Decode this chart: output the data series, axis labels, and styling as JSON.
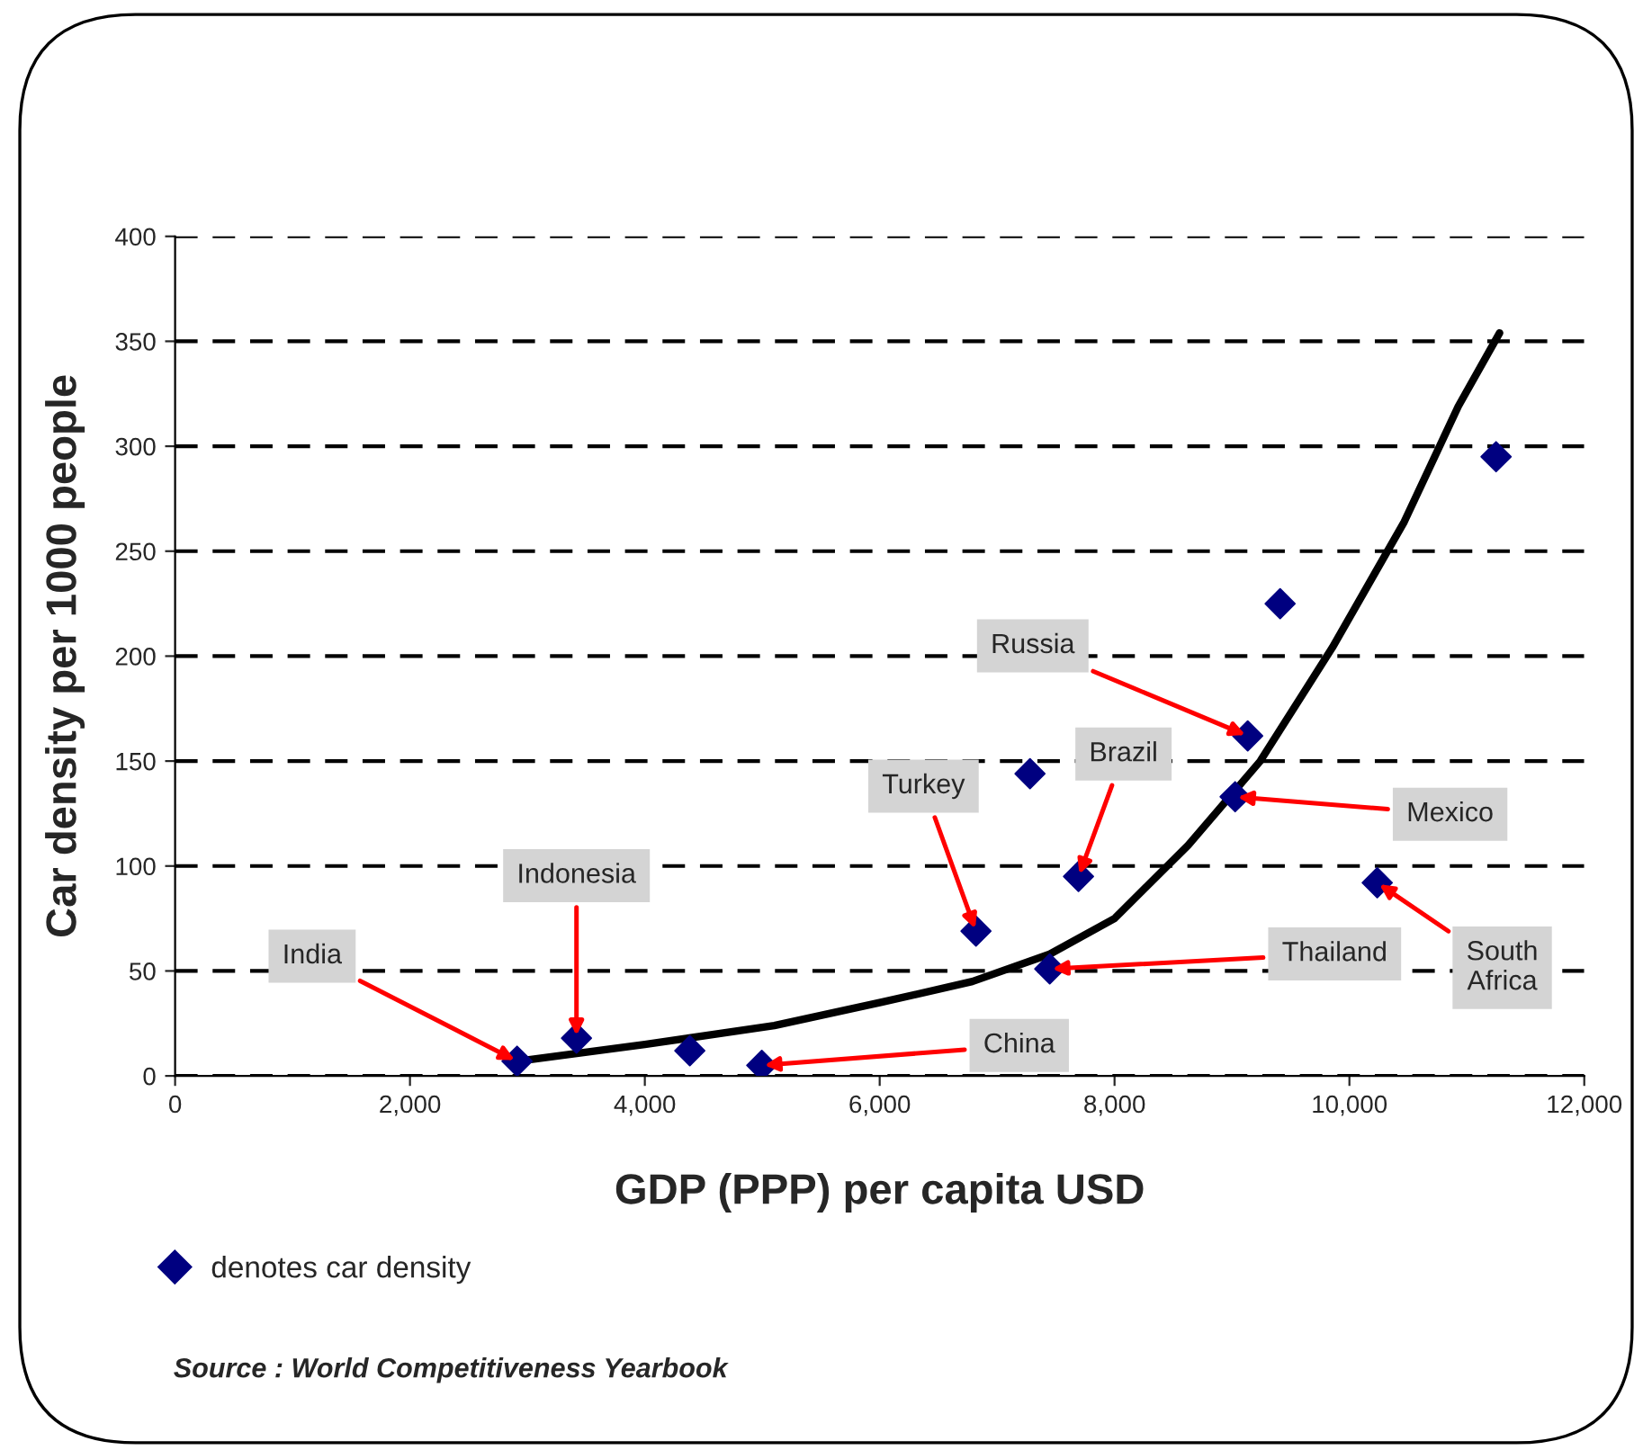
{
  "chart_data": {
    "type": "scatter",
    "xlabel": "GDP (PPP) per capita USD",
    "ylabel": "Car density per 1000 people",
    "x": [
      2912,
      3418,
      4383,
      4996,
      6820,
      7280,
      7448,
      7693,
      9027,
      9134,
      9410,
      10237,
      11249
    ],
    "series": [
      {
        "name": "denotes car density",
        "color": "#000080",
        "marker": "diamond",
        "values": [
          7,
          18,
          12,
          5,
          69,
          144,
          51,
          95,
          133,
          162,
          225,
          92,
          295
        ]
      },
      {
        "type": "line",
        "color": "#000000",
        "marker": "none",
        "line_style": "solid",
        "x": [
          2912,
          4000,
          5103,
          6008,
          6789,
          7448,
          8000,
          8628,
          9241,
          9854,
          10467,
          10927,
          11279
        ],
        "values": [
          7,
          15,
          24,
          35,
          45,
          58,
          75,
          110,
          150,
          204,
          264,
          319,
          354
        ]
      }
    ],
    "xlim": [
      0,
      12000
    ],
    "xticks": [
      0,
      {
        "value": 2000,
        "label": "2,000"
      },
      {
        "value": 4000,
        "label": "4,000"
      },
      {
        "value": 6000,
        "label": "6,000"
      },
      {
        "value": 8000,
        "label": "8,000"
      },
      {
        "value": 10000,
        "label": "10,000"
      },
      {
        "value": 12000,
        "label": "12,000"
      }
    ],
    "ylim": [
      0,
      400
    ],
    "yticks": [
      0,
      50,
      100,
      150,
      200,
      250,
      300,
      350,
      400
    ],
    "grid": "y",
    "legend": "bottom left",
    "annotations": [
      {
        "text": "India",
        "x": 2912,
        "y": 7
      },
      {
        "text": "Indonesia",
        "x": 3418,
        "y": 18
      },
      {
        "text": "China",
        "x": 4996,
        "y": 5
      },
      {
        "text": "Turkey",
        "x": 6820,
        "y": 69
      },
      {
        "text": "Brazil",
        "x": 7693,
        "y": 95
      },
      {
        "text": "Thailand",
        "x": 7448,
        "y": 51
      },
      {
        "text": "Mexico",
        "x": 9027,
        "y": 133
      },
      {
        "text": "Russia",
        "x": 9134,
        "y": 162
      },
      {
        "text": "South\nAfrica",
        "x": 10237,
        "y": 92
      },
      "Source : World Competitiveness Yearbook"
    ]
  }
}
